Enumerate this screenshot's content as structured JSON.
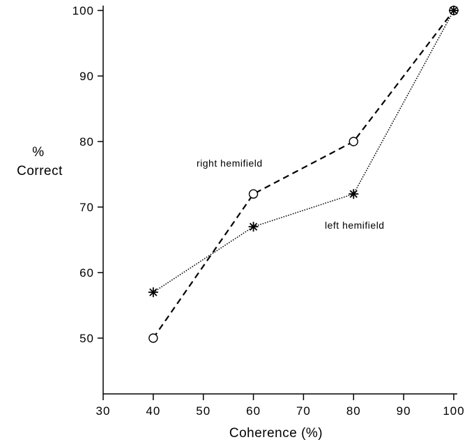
{
  "chart_data": {
    "type": "line",
    "title": "",
    "xlabel": "Coherence (%)",
    "ylabel_lines": [
      "%",
      "Correct"
    ],
    "xlim": [
      30,
      100
    ],
    "ylim": [
      45,
      100
    ],
    "xticks": [
      30,
      40,
      50,
      60,
      70,
      80,
      90,
      100
    ],
    "yticks": [
      50,
      60,
      70,
      80,
      90,
      100
    ],
    "grid": false,
    "series": [
      {
        "name": "right hemifield",
        "x": [
          40,
          60,
          80,
          100
        ],
        "y": [
          50,
          72,
          80,
          100
        ],
        "marker": "circle",
        "line_style": "dashed",
        "color": "#000000"
      },
      {
        "name": "left hemifield",
        "x": [
          40,
          60,
          80,
          100
        ],
        "y": [
          57,
          67,
          72,
          100
        ],
        "marker": "asterisk",
        "line_style": "dotted",
        "color": "#000000"
      }
    ]
  }
}
